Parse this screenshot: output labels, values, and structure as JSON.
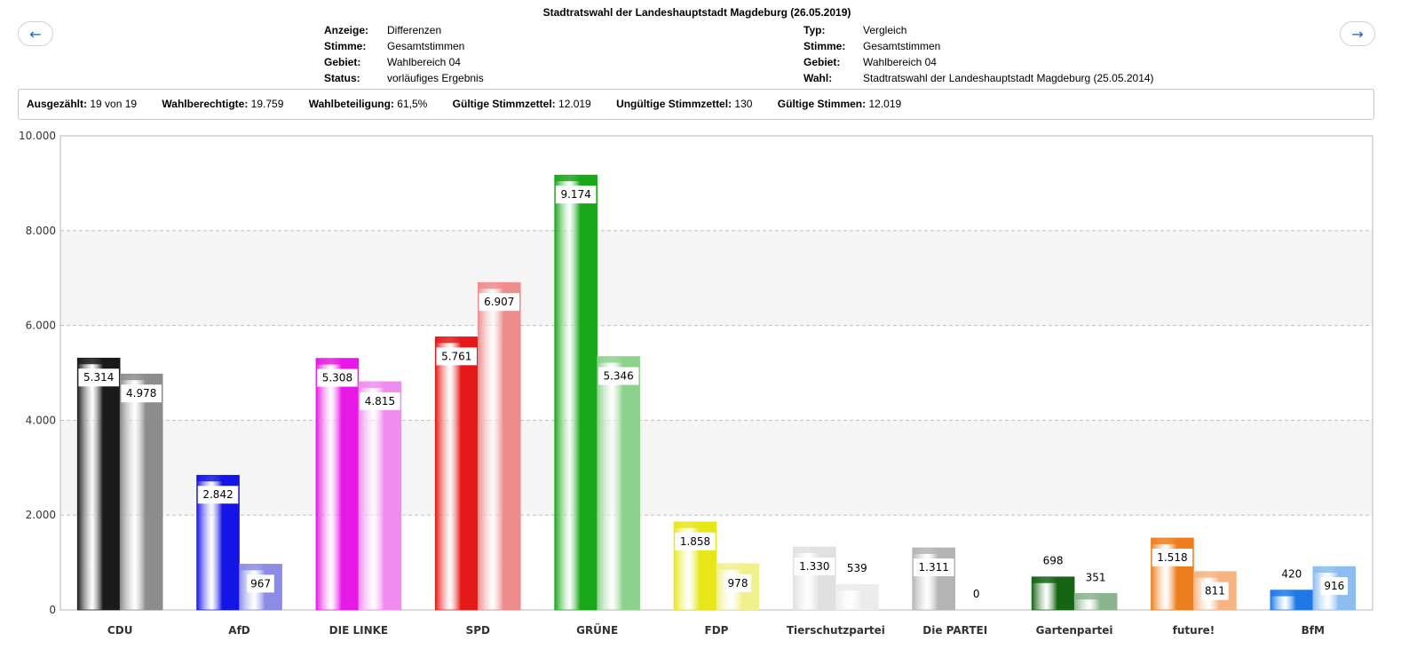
{
  "nav": {
    "prev_icon": "←",
    "next_icon": "→"
  },
  "header": {
    "title": "Stadtratswahl der Landeshauptstadt Magdeburg (26.05.2019)",
    "left": [
      {
        "key": "Anzeige:",
        "value": "Differenzen"
      },
      {
        "key": "Stimme:",
        "value": "Gesamtstimmen"
      },
      {
        "key": "Gebiet:",
        "value": "Wahlbereich 04"
      },
      {
        "key": "Status:",
        "value": "vorläufiges Ergebnis"
      }
    ],
    "right": [
      {
        "key": "Typ:",
        "value": "Vergleich"
      },
      {
        "key": "Stimme:",
        "value": "Gesamtstimmen"
      },
      {
        "key": "Gebiet:",
        "value": "Wahlbereich 04"
      },
      {
        "key": "Wahl:",
        "value": "Stadtratswahl der Landeshauptstadt Magdeburg (25.05.2014)"
      }
    ]
  },
  "stats": [
    {
      "key": "Ausgezählt:",
      "value": "19 von 19"
    },
    {
      "key": "Wahlberechtigte:",
      "value": "19.759"
    },
    {
      "key": "Wahlbeteiligung:",
      "value": "61,5%"
    },
    {
      "key": "Gültige Stimmzettel:",
      "value": "12.019"
    },
    {
      "key": "Ungültige Stimmzettel:",
      "value": "130"
    },
    {
      "key": "Gültige Stimmen:",
      "value": "12.019"
    }
  ],
  "chart_data": {
    "type": "bar",
    "categories": [
      "CDU",
      "AfD",
      "DIE LINKE",
      "SPD",
      "GRÜNE",
      "FDP",
      "Tierschutzpartei",
      "Die PARTEI",
      "Gartenpartei",
      "future!",
      "BfM"
    ],
    "series": [
      {
        "values": [
          5314,
          2842,
          5308,
          5761,
          9174,
          1858,
          1330,
          1311,
          698,
          1518,
          420
        ],
        "labels": [
          "5.314",
          "2.842",
          "5.308",
          "5.761",
          "9.174",
          "1.858",
          "1.330",
          "1.311",
          "698",
          "1.518",
          "420"
        ]
      },
      {
        "values": [
          4978,
          967,
          4815,
          6907,
          5346,
          978,
          539,
          0,
          351,
          811,
          916
        ],
        "labels": [
          "4.978",
          "967",
          "4.815",
          "6.907",
          "5.346",
          "978",
          "539",
          "0",
          "351",
          "811",
          "916"
        ]
      }
    ],
    "colors_2019": [
      "#1a1a1a",
      "#1414e6",
      "#e619e6",
      "#e61919",
      "#19a819",
      "#e6e619",
      "#e0e0e0",
      "#b4b4b4",
      "#146414",
      "#ee7d1e",
      "#1e78e6"
    ],
    "colors_2014": [
      "#8c8c8c",
      "#8c8ce6",
      "#f08cf0",
      "#ee8c8c",
      "#8cd28c",
      "#f0f08c",
      "#ececec",
      "#d0d0d0",
      "#8cb48c",
      "#f5b482",
      "#8cbcf0"
    ],
    "yticks": [
      "0",
      "2.000",
      "4.000",
      "6.000",
      "8.000",
      "10.000"
    ],
    "ylim": [
      0,
      10000
    ],
    "grid": true
  }
}
